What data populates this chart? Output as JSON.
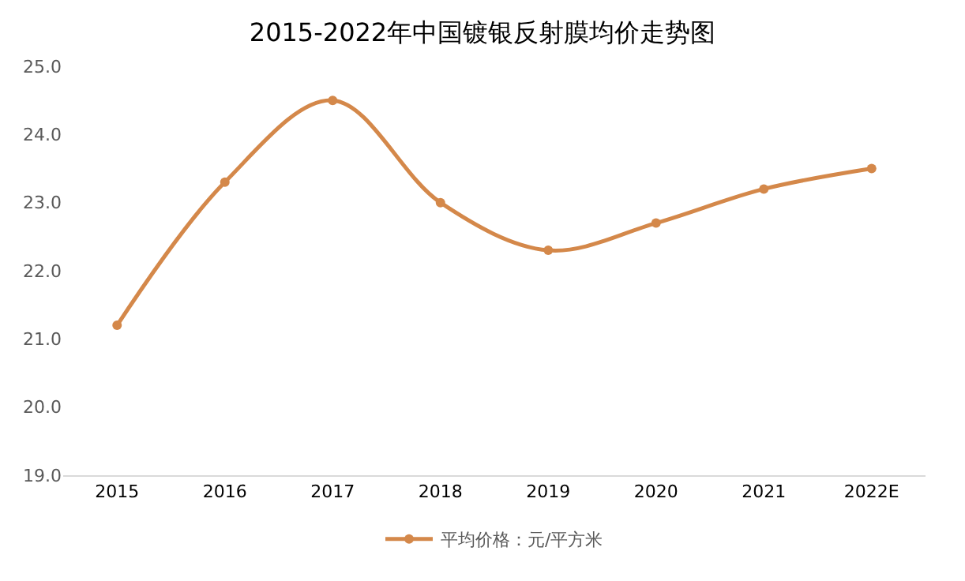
{
  "chart_data": {
    "type": "line",
    "title": "2015-2022年中国镀银反射膜均价走势图",
    "categories": [
      "2015",
      "2016",
      "2017",
      "2018",
      "2019",
      "2020",
      "2021",
      "2022E"
    ],
    "series": [
      {
        "name": "平均价格：元/平方米",
        "color": "#d4884a",
        "values": [
          21.2,
          23.3,
          24.5,
          23.0,
          22.3,
          22.7,
          23.2,
          23.5
        ]
      }
    ],
    "ylim": [
      19,
      25
    ],
    "yticks": [
      {
        "value": 19,
        "label": "19.0"
      },
      {
        "value": 20,
        "label": "20.0"
      },
      {
        "value": 21,
        "label": "21.0"
      },
      {
        "value": 22,
        "label": "22.0"
      },
      {
        "value": 23,
        "label": "23.0"
      },
      {
        "value": 24,
        "label": "24.0"
      },
      {
        "value": 25,
        "label": "25.0"
      }
    ],
    "grid": false,
    "legend": "bottom",
    "marker": "circle",
    "line_style": "solid"
  }
}
